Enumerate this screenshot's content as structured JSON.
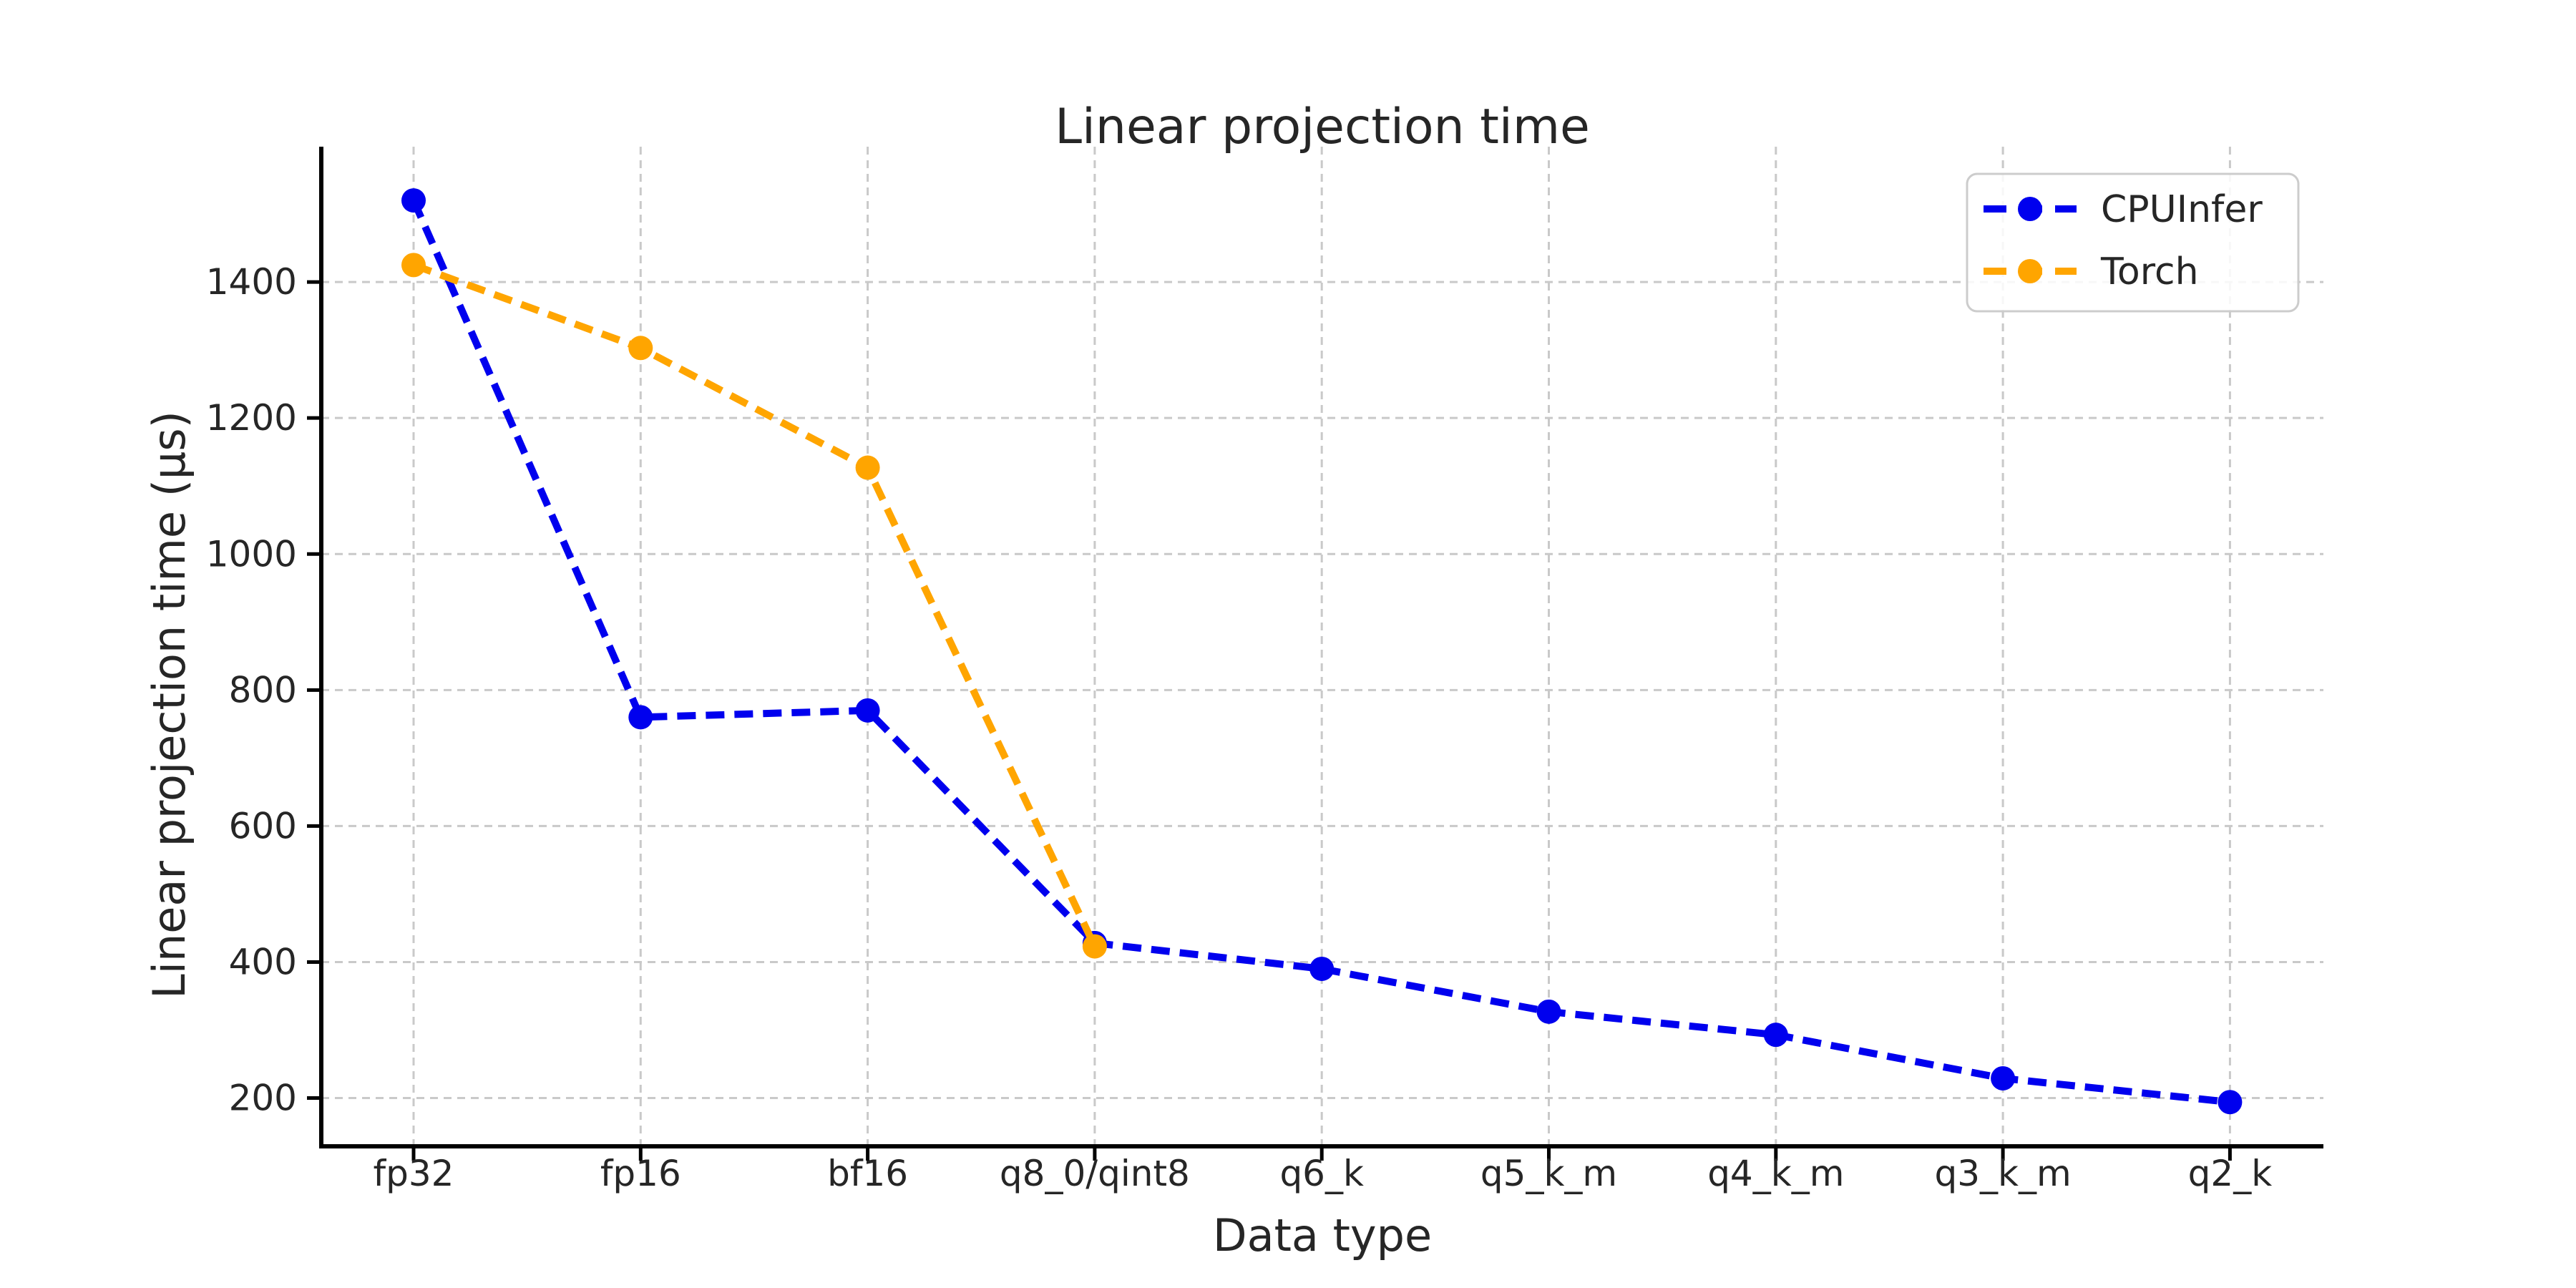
{
  "chart_data": {
    "type": "line",
    "title": "Linear projection time",
    "xlabel": "Data type",
    "ylabel": "Linear projection time (µs)",
    "categories": [
      "fp32",
      "fp16",
      "bf16",
      "q8_0/qint8",
      "q6_k",
      "q5_k_m",
      "q4_k_m",
      "q3_k_m",
      "q2_k"
    ],
    "series": [
      {
        "name": "CPUInfer",
        "color": "#0000ee",
        "marker": "circle",
        "line_style": "dashed",
        "values": [
          1520,
          760,
          770,
          428,
          390,
          327,
          293,
          229,
          194
        ]
      },
      {
        "name": "Torch",
        "color": "#ffa500",
        "marker": "circle",
        "line_style": "dashed",
        "values": [
          1425,
          1303,
          1127,
          423
        ]
      }
    ],
    "yticks": [
      200,
      400,
      600,
      800,
      1000,
      1200,
      1400
    ],
    "ylim": [
      129,
      1599
    ],
    "grid": true,
    "grid_style": "dashed",
    "legend": {
      "position": "upper right",
      "entries": [
        "CPUInfer",
        "Torch"
      ]
    }
  },
  "style": {
    "background": "#ffffff",
    "grid_color": "#c9c9c9",
    "spine_color": "#000000",
    "text_color": "#262626",
    "legend_border_color": "#cccccc"
  }
}
